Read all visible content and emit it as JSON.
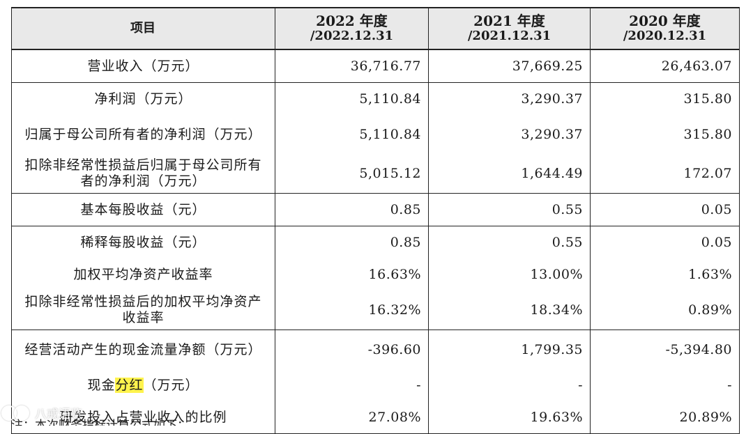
{
  "header": {
    "item": "项目",
    "cols": [
      {
        "year": "2022 年度",
        "date": "/2022.12.31"
      },
      {
        "year": "2021 年度",
        "date": "/2021.12.31"
      },
      {
        "year": "2020 年度",
        "date": "/2020.12.31"
      }
    ]
  },
  "rows": [
    {
      "label": "营业收入（万元）",
      "v": [
        "36,716.77",
        "37,669.25",
        "26,463.07"
      ]
    },
    {
      "label": "净利润（万元）",
      "v": [
        "5,110.84",
        "3,290.37",
        "315.80"
      ]
    },
    {
      "label": "归属于母公司所有者的净利润（万元）",
      "v": [
        "5,110.84",
        "3,290.37",
        "315.80"
      ]
    },
    {
      "label": "扣除非经常性损益后归属于母公司所有者的净利润（万元）",
      "v": [
        "5,015.12",
        "1,644.49",
        "172.07"
      ]
    },
    {
      "label": "基本每股收益（元）",
      "v": [
        "0.85",
        "0.55",
        "0.05"
      ]
    },
    {
      "label": "稀释每股收益（元）",
      "v": [
        "0.85",
        "0.55",
        "0.05"
      ]
    },
    {
      "label": "加权平均净资产收益率",
      "v": [
        "16.63%",
        "13.00%",
        "1.63%"
      ]
    },
    {
      "label": "扣除非经常性损益后的加权平均净资产收益率",
      "v": [
        "16.32%",
        "18.34%",
        "0.89%"
      ]
    },
    {
      "label": "经营活动产生的现金流量净额（万元）",
      "v": [
        "-396.60",
        "1,799.35",
        "-5,394.80"
      ]
    },
    {
      "label_pre": "现金",
      "label_hl": "分红",
      "label_post": "（万元）",
      "v": [
        "-",
        "-",
        "-"
      ]
    },
    {
      "label": "研发投入占营业收入的比例",
      "v": [
        "27.08%",
        "19.63%",
        "20.89%"
      ]
    }
  ],
  "watermark": "八戒语览",
  "footnote": "注：本次财务指标计算公式如下："
}
